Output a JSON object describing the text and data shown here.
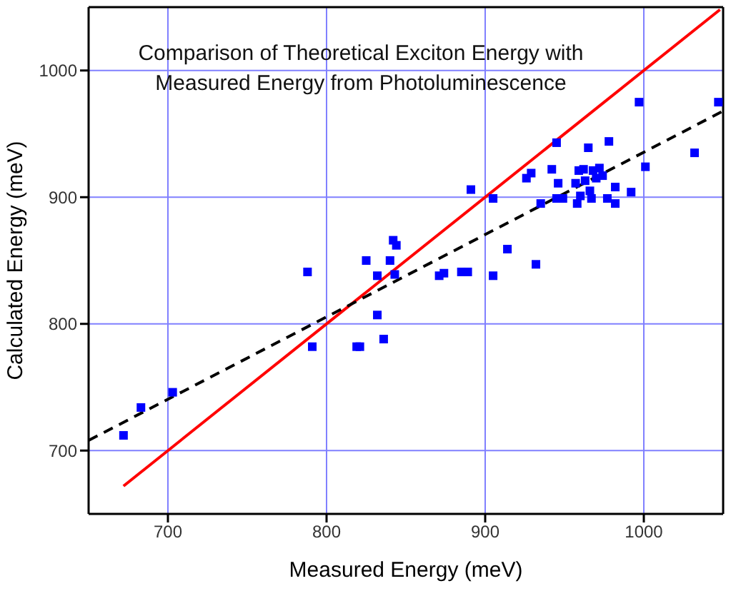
{
  "chart_data": {
    "type": "scatter",
    "title": "Comparison of Theoretical Exciton Energy with\nMeasured Energy from Photoluminescence",
    "xlabel": "Measured Energy (meV)",
    "ylabel": "Calculated Energy (meV)",
    "xlim": [
      650,
      1050
    ],
    "ylim": [
      650,
      1050
    ],
    "xticks": [
      700,
      800,
      900,
      1000
    ],
    "yticks": [
      700,
      800,
      900,
      1000
    ],
    "grid": true,
    "series": [
      {
        "marker": "square",
        "color": "#0000ff",
        "x": [
          672,
          683,
          703,
          788,
          791,
          819,
          821,
          825,
          832,
          832,
          836,
          840,
          842,
          844,
          843,
          871,
          874,
          885,
          889,
          891,
          905,
          905,
          914,
          926,
          929,
          932,
          935,
          942,
          945,
          946,
          945,
          949,
          957,
          958,
          959,
          962,
          960,
          965,
          966,
          968,
          972,
          967,
          974,
          978,
          977,
          982,
          982,
          992,
          997,
          1001,
          1032,
          1047,
          963,
          970
        ],
        "values": [
          712,
          734,
          746,
          841,
          782,
          782,
          782,
          850,
          838,
          807,
          788,
          850,
          866,
          862,
          839,
          838,
          840,
          841,
          841,
          906,
          838,
          899,
          859,
          915,
          919,
          847,
          895,
          922,
          943,
          911,
          899,
          899,
          911,
          895,
          921,
          922,
          901,
          939,
          905,
          921,
          923,
          899,
          917,
          944,
          899,
          908,
          895,
          904,
          975,
          924,
          935,
          975,
          913,
          915
        ]
      },
      {
        "type": "line",
        "marker": "none",
        "line_style": "solid",
        "color": "#ff0000",
        "x": [
          672,
          1048
        ],
        "values": [
          672,
          1048
        ]
      },
      {
        "type": "line",
        "marker": "none",
        "line_style": "dashed",
        "color": "#000000",
        "x": [
          650,
          1050
        ],
        "values": [
          708,
          968
        ]
      }
    ]
  }
}
